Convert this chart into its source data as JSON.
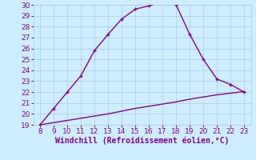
{
  "x": [
    8,
    9,
    10,
    11,
    12,
    13,
    14,
    15,
    16,
    17,
    18,
    19,
    20,
    21,
    22,
    23
  ],
  "y_main": [
    19,
    20.5,
    22,
    23.5,
    25.8,
    27.3,
    28.7,
    29.6,
    29.9,
    30.3,
    30.0,
    27.3,
    25.0,
    23.2,
    22.7,
    22.0
  ],
  "y_line": [
    19.0,
    19.2,
    19.4,
    19.6,
    19.8,
    20.0,
    20.25,
    20.5,
    20.7,
    20.9,
    21.1,
    21.35,
    21.55,
    21.75,
    21.9,
    22.05
  ],
  "line_color": "#880088",
  "xlabel": "Windchill (Refroidissement éolien,°C)",
  "xlim": [
    7.5,
    23.5
  ],
  "ylim": [
    19,
    30
  ],
  "xticks": [
    8,
    9,
    10,
    11,
    12,
    13,
    14,
    15,
    16,
    17,
    18,
    19,
    20,
    21,
    22,
    23
  ],
  "yticks": [
    19,
    20,
    21,
    22,
    23,
    24,
    25,
    26,
    27,
    28,
    29,
    30
  ],
  "bg_color": "#cceeff",
  "grid_color": "#aaccdd",
  "tick_color": "#880088",
  "label_color": "#880088",
  "tick_fontsize": 6.5,
  "xlabel_fontsize": 7.0,
  "linewidth": 1.0,
  "markersize": 3.5
}
